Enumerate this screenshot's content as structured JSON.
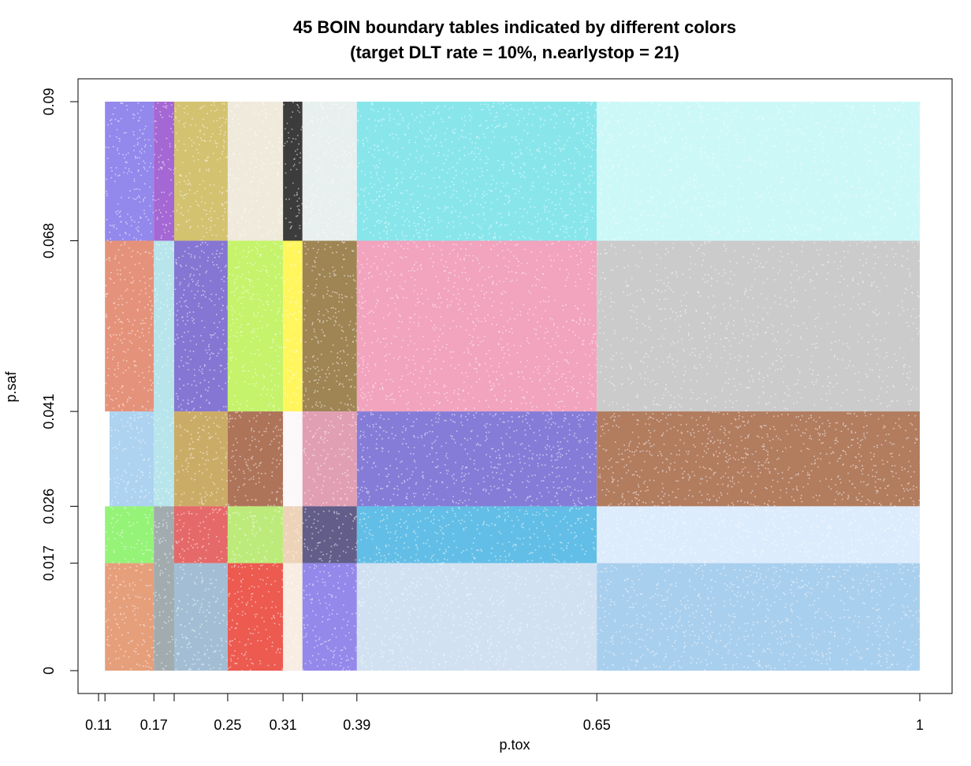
{
  "chart_data": {
    "type": "scatter",
    "title": "45 BOIN boundary tables indicated by different colors",
    "subtitle": "(target DLT rate = 10%, n.earlystop = 21)",
    "xlabel": "p.tox",
    "ylabel": "p.saf",
    "xlim": [
      0.105,
      1.0
    ],
    "ylim": [
      0,
      0.09
    ],
    "x_ticks": [
      {
        "value": 0.11,
        "label": "0.11"
      },
      {
        "value": 0.117,
        "label": ""
      },
      {
        "value": 0.17,
        "label": "0.17"
      },
      {
        "value": 0.192,
        "label": ""
      },
      {
        "value": 0.25,
        "label": "0.25"
      },
      {
        "value": 0.31,
        "label": "0.31"
      },
      {
        "value": 0.331,
        "label": ""
      },
      {
        "value": 0.39,
        "label": "0.39"
      },
      {
        "value": 0.65,
        "label": "0.65"
      },
      {
        "value": 1,
        "label": "1"
      }
    ],
    "y_ticks": [
      {
        "value": 0,
        "label": "0"
      },
      {
        "value": 0.017,
        "label": "0.017"
      },
      {
        "value": 0.026,
        "label": "0.026"
      },
      {
        "value": 0.041,
        "label": "0.041"
      },
      {
        "value": 0.068,
        "label": "0.068"
      },
      {
        "value": 0.09,
        "label": "0.09"
      }
    ],
    "grid": false,
    "regions": [
      {
        "x": [
          0.105,
          0.117
        ],
        "y": [
          0.068,
          0.09
        ],
        "color": "#c77da0"
      },
      {
        "x": [
          0.117,
          0.17
        ],
        "y": [
          0.068,
          0.09
        ],
        "color": "#7b6ee8"
      },
      {
        "x": [
          0.17,
          0.192
        ],
        "y": [
          0.068,
          0.09
        ],
        "color": "#9146c9"
      },
      {
        "x": [
          0.192,
          0.25
        ],
        "y": [
          0.068,
          0.09
        ],
        "color": "#c9b550"
      },
      {
        "x": [
          0.25,
          0.31
        ],
        "y": [
          0.068,
          0.09
        ],
        "color": "#ece5d3"
      },
      {
        "x": [
          0.31,
          0.331
        ],
        "y": [
          0.068,
          0.09
        ],
        "color": "#111111"
      },
      {
        "x": [
          0.331,
          0.39
        ],
        "y": [
          0.068,
          0.09
        ],
        "color": "#e3ebeb"
      },
      {
        "x": [
          0.39,
          0.65
        ],
        "y": [
          0.068,
          0.09
        ],
        "color": "#6ee0e6"
      },
      {
        "x": [
          0.65,
          1.0
        ],
        "y": [
          0.068,
          0.09
        ],
        "color": "#c2f7f7"
      },
      {
        "x": [
          0.105,
          0.117
        ],
        "y": [
          0.041,
          0.068
        ],
        "color": "#cdb7a5"
      },
      {
        "x": [
          0.117,
          0.17
        ],
        "y": [
          0.041,
          0.068
        ],
        "color": "#df7a5d"
      },
      {
        "x": [
          0.17,
          0.192
        ],
        "y": [
          0.026,
          0.068
        ],
        "color": "#a7dfe6"
      },
      {
        "x": [
          0.192,
          0.25
        ],
        "y": [
          0.041,
          0.068
        ],
        "color": "#6a58c9"
      },
      {
        "x": [
          0.25,
          0.31
        ],
        "y": [
          0.041,
          0.068
        ],
        "color": "#b8f04a"
      },
      {
        "x": [
          0.31,
          0.331
        ],
        "y": [
          0.041,
          0.068
        ],
        "color": "#fff43a"
      },
      {
        "x": [
          0.331,
          0.39
        ],
        "y": [
          0.041,
          0.068
        ],
        "color": "#8a6a2e"
      },
      {
        "x": [
          0.39,
          0.65
        ],
        "y": [
          0.041,
          0.068
        ],
        "color": "#ef8fae"
      },
      {
        "x": [
          0.65,
          1.0
        ],
        "y": [
          0.041,
          0.068
        ],
        "color": "#bfbfbf"
      },
      {
        "x": [
          0.105,
          0.17
        ],
        "y": [
          0.026,
          0.041
        ],
        "color": "#9bc9ee"
      },
      {
        "x": [
          0.192,
          0.25
        ],
        "y": [
          0.026,
          0.041
        ],
        "color": "#c09a45"
      },
      {
        "x": [
          0.25,
          0.31
        ],
        "y": [
          0.026,
          0.041
        ],
        "color": "#9c5636"
      },
      {
        "x": [
          0.31,
          0.331
        ],
        "y": [
          0.026,
          0.041
        ],
        "color": "#fbf7f8"
      },
      {
        "x": [
          0.331,
          0.39
        ],
        "y": [
          0.026,
          0.041
        ],
        "color": "#db8aa3"
      },
      {
        "x": [
          0.39,
          0.65
        ],
        "y": [
          0.026,
          0.041
        ],
        "color": "#6a5fd0"
      },
      {
        "x": [
          0.65,
          1.0
        ],
        "y": [
          0.026,
          0.041
        ],
        "color": "#a15f3c"
      },
      {
        "x": [
          0.105,
          0.117
        ],
        "y": [
          0.017,
          0.026
        ],
        "color": "#f08a2c"
      },
      {
        "x": [
          0.117,
          0.17
        ],
        "y": [
          0.017,
          0.026
        ],
        "color": "#7ef05a"
      },
      {
        "x": [
          0.17,
          0.192
        ],
        "y": [
          0.0,
          0.026
        ],
        "color": "#8e9a9e"
      },
      {
        "x": [
          0.192,
          0.25
        ],
        "y": [
          0.017,
          0.026
        ],
        "color": "#e04848"
      },
      {
        "x": [
          0.25,
          0.31
        ],
        "y": [
          0.017,
          0.026
        ],
        "color": "#aee65e"
      },
      {
        "x": [
          0.31,
          0.331
        ],
        "y": [
          0.017,
          0.026
        ],
        "color": "#e9c9a8"
      },
      {
        "x": [
          0.331,
          0.39
        ],
        "y": [
          0.017,
          0.026
        ],
        "color": "#3f3a6f"
      },
      {
        "x": [
          0.39,
          0.65
        ],
        "y": [
          0.017,
          0.026
        ],
        "color": "#3fb0e0"
      },
      {
        "x": [
          0.65,
          1.0
        ],
        "y": [
          0.017,
          0.026
        ],
        "color": "#d6e8fb"
      },
      {
        "x": [
          0.105,
          0.117
        ],
        "y": [
          0.0,
          0.017
        ],
        "color": "#9bd1e6"
      },
      {
        "x": [
          0.117,
          0.17
        ],
        "y": [
          0.0,
          0.017
        ],
        "color": "#e08a5e"
      },
      {
        "x": [
          0.192,
          0.25
        ],
        "y": [
          0.0,
          0.017
        ],
        "color": "#8fb0cb"
      },
      {
        "x": [
          0.25,
          0.31
        ],
        "y": [
          0.0,
          0.017
        ],
        "color": "#e8362a"
      },
      {
        "x": [
          0.31,
          0.331
        ],
        "y": [
          0.0,
          0.017
        ],
        "color": "#f6e9dd"
      },
      {
        "x": [
          0.331,
          0.39
        ],
        "y": [
          0.0,
          0.017
        ],
        "color": "#7d6ee6"
      },
      {
        "x": [
          0.39,
          0.65
        ],
        "y": [
          0.0,
          0.017
        ],
        "color": "#c7daee"
      },
      {
        "x": [
          0.65,
          1.0
        ],
        "y": [
          0.0,
          0.017
        ],
        "color": "#96c4ea"
      }
    ]
  }
}
